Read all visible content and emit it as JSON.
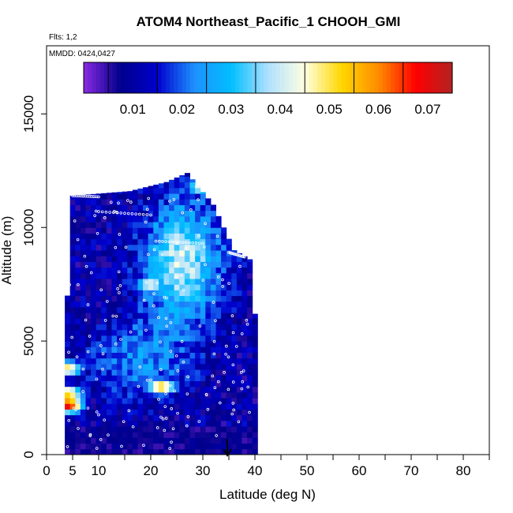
{
  "chart_data": {
    "type": "heatmap",
    "title": "ATOM4 Northeast_Pacific_1 CHOOH_GMI",
    "flights_note": "Flts: 1,2",
    "date_note": "MMDD: 0424,0427",
    "xlabel": "Latitude (deg N)",
    "ylabel": "Altitude (m)",
    "xlim": [
      0,
      85
    ],
    "ylim": [
      0,
      18000
    ],
    "x_ticks": [
      0,
      5,
      10,
      20,
      30,
      40,
      50,
      60,
      70,
      80
    ],
    "y_ticks": [
      0,
      5000,
      10000,
      15000
    ],
    "colorbar": {
      "range": [
        0,
        0.075
      ],
      "ticks": [
        "0.01",
        "0.02",
        "0.03",
        "0.04",
        "0.05",
        "0.06",
        "0.07"
      ],
      "colors": [
        "#8a2be2",
        "#00008b",
        "#0000cd",
        "#1e90ff",
        "#00bfff",
        "#b0e0ff",
        "#ffffe0",
        "#ffd700",
        "#ff8c00",
        "#ff0000",
        "#b22222"
      ]
    },
    "arrow_latitude": 35,
    "curtain": {
      "x_start": 3.5,
      "x_end": 40.5,
      "x_step": 1.0,
      "y_step": 250,
      "top_by_lat": [
        [
          3.5,
          6000
        ],
        [
          4.5,
          8000
        ],
        [
          5.0,
          11400
        ],
        [
          16,
          11600
        ],
        [
          23,
          12000
        ],
        [
          27,
          12400
        ],
        [
          32,
          11000
        ],
        [
          36,
          9000
        ],
        [
          39,
          8600
        ],
        [
          40.5,
          5000
        ]
      ],
      "bottom": 0,
      "features": [
        {
          "lat": 25,
          "alt": 9500,
          "val": 0.045
        },
        {
          "lat": 22,
          "alt": 3000,
          "val": 0.055
        },
        {
          "lat": 4,
          "alt": 2200,
          "val": 0.072
        },
        {
          "lat": 4,
          "alt": 2700,
          "val": 0.055
        },
        {
          "lat": 4,
          "alt": 3800,
          "val": 0.05
        },
        {
          "lat": 30,
          "alt": 11800,
          "val": 0.048
        },
        {
          "lat": 20,
          "alt": 7500,
          "val": 0.045
        }
      ]
    }
  }
}
